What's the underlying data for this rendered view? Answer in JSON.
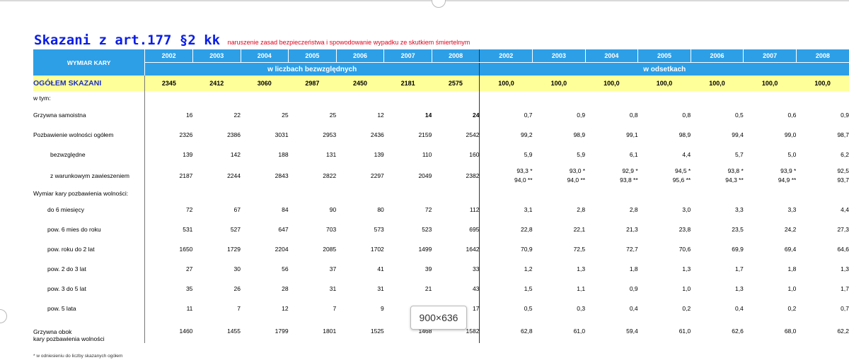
{
  "title": {
    "main": "Skazani z art.177 §2 kk",
    "sub": "naruszenie zasad bezpieczeństwa i spowodowanie wypadku ze skutkiem śmiertelnym"
  },
  "header": {
    "label": "WYMIAR KARY",
    "years_abs": [
      "2002",
      "2003",
      "2004",
      "2005",
      "2006",
      "2007",
      "2008"
    ],
    "years_pct": [
      "2002",
      "2003",
      "2004",
      "2005",
      "2006",
      "2007",
      "2008"
    ],
    "sub_abs": "w liczbach bezwzględnych",
    "sub_pct": "w odsetkach"
  },
  "total": {
    "label": "OGÓŁEM SKAZANI",
    "abs": [
      "2345",
      "2412",
      "3060",
      "2987",
      "2450",
      "2181",
      "2575"
    ],
    "pct": [
      "100,0",
      "100,0",
      "100,0",
      "100,0",
      "100,0",
      "100,0",
      "100,0"
    ]
  },
  "wtym_label": "w tym:",
  "rows": {
    "grzywna": {
      "label": "Grzywna samoistna",
      "abs": [
        "16",
        "22",
        "25",
        "25",
        "12",
        "14",
        "24"
      ],
      "pct": [
        "0,7",
        "0,9",
        "0,8",
        "0,8",
        "0,5",
        "0,6",
        "0,9"
      ]
    },
    "pozb": {
      "label": "Pozbawienie wolności ogółem",
      "abs": [
        "2326",
        "2386",
        "3031",
        "2953",
        "2436",
        "2159",
        "2542"
      ],
      "pct": [
        "99,2",
        "98,9",
        "99,1",
        "98,9",
        "99,4",
        "99,0",
        "98,7"
      ]
    },
    "bezw": {
      "label": "bezwzględne",
      "abs": [
        "139",
        "142",
        "188",
        "131",
        "139",
        "110",
        "160"
      ],
      "pct": [
        "5,9",
        "5,9",
        "6,1",
        "4,4",
        "5,7",
        "5,0",
        "6,2"
      ]
    },
    "zawies": {
      "label": "z warunkowym zawieszeniem",
      "abs": [
        "2187",
        "2244",
        "2843",
        "2822",
        "2297",
        "2049",
        "2382"
      ],
      "pct1": [
        "93,3 *",
        "93,0 *",
        "92,9 *",
        "94,5 *",
        "93,8 *",
        "93,9 *",
        "92,5"
      ],
      "pct2": [
        "94,0 **",
        "94,0 **",
        "93,8 **",
        "95,6 **",
        "94,3 **",
        "94,9 **",
        "93,7"
      ]
    },
    "wymiar_label": "Wymiar kary pozbawienia wolności:",
    "do6": {
      "label": "do 6 miesięcy",
      "abs": [
        "72",
        "67",
        "84",
        "90",
        "80",
        "72",
        "112"
      ],
      "pct": [
        "3,1",
        "2,8",
        "2,8",
        "3,0",
        "3,3",
        "3,3",
        "4,4"
      ]
    },
    "pow6": {
      "label": "pow. 6 mies do roku",
      "abs": [
        "531",
        "527",
        "647",
        "703",
        "573",
        "523",
        "695"
      ],
      "pct": [
        "22,8",
        "22,1",
        "21,3",
        "23,8",
        "23,5",
        "24,2",
        "27,3"
      ]
    },
    "powr2": {
      "label": "pow. roku do 2 lat",
      "abs": [
        "1650",
        "1729",
        "2204",
        "2085",
        "1702",
        "1499",
        "1642"
      ],
      "pct": [
        "70,9",
        "72,5",
        "72,7",
        "70,6",
        "69,9",
        "69,4",
        "64,6"
      ]
    },
    "pow23": {
      "label": "pow. 2 do 3 lat",
      "abs": [
        "27",
        "30",
        "56",
        "37",
        "41",
        "39",
        "33"
      ],
      "pct": [
        "1,2",
        "1,3",
        "1,8",
        "1,3",
        "1,7",
        "1,8",
        "1,3"
      ]
    },
    "pow35": {
      "label": "pow. 3 do 5 lat",
      "abs": [
        "35",
        "26",
        "28",
        "31",
        "31",
        "21",
        "43"
      ],
      "pct": [
        "1,5",
        "1,1",
        "0,9",
        "1,0",
        "1,3",
        "1,0",
        "1,7"
      ]
    },
    "pow5": {
      "label": "pow. 5 lata",
      "abs": [
        "11",
        "7",
        "12",
        "7",
        "9",
        "",
        "17"
      ],
      "pct": [
        "0,5",
        "0,3",
        "0,4",
        "0,2",
        "0,4",
        "0,2",
        "0,7"
      ]
    },
    "grzobok": {
      "label1": "Grzywna obok",
      "label2": "kary pozbawienia wolności",
      "abs": [
        "1460",
        "1455",
        "1799",
        "1801",
        "1525",
        "1468",
        "1582"
      ],
      "pct": [
        "62,8",
        "61,0",
        "59,4",
        "61,0",
        "62,6",
        "68,0",
        "62,2"
      ]
    }
  },
  "footnote": "* w odniesieniu do liczby skazanych ogółem",
  "dimension_badge": "900×636",
  "colors": {
    "header_blue": "#2d9fe6",
    "total_yellow": "#ffff99",
    "title_blue": "#0a1ee6",
    "subtitle_red": "#e0001a"
  }
}
